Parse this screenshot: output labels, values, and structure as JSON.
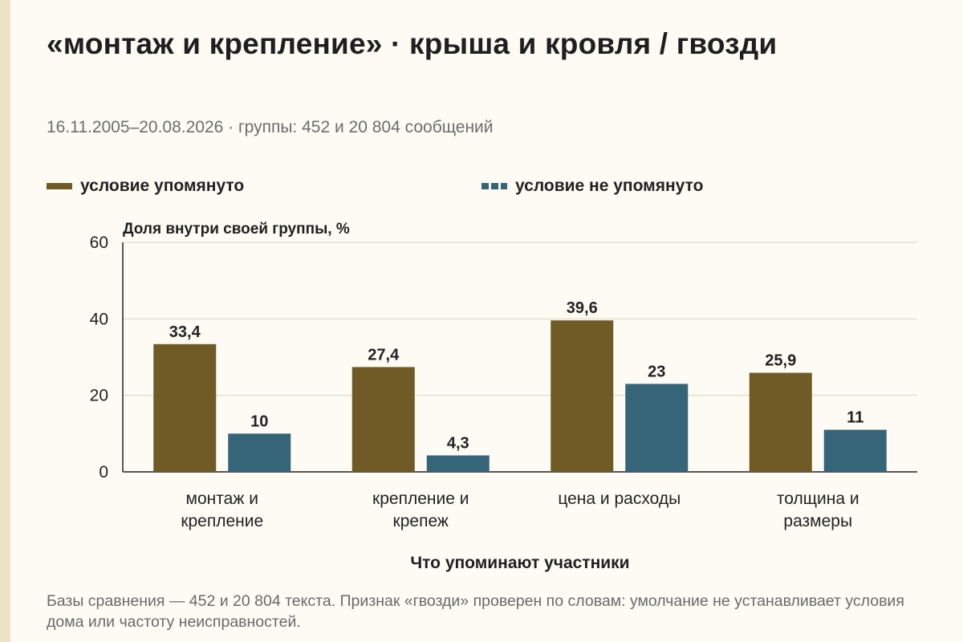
{
  "title": "«монтаж и крепление» · крыша и кровля / гвозди",
  "subtitle": "16.11.2005–20.08.2026 · группы: 452 и 20 804 сообщений",
  "footnote": "Базы сравнения — 452 и 20 804 текста. Признак «гвозди» проверен по словам: умолчание не устанавливает условия дома или частоту неисправностей.",
  "colors": {
    "mentioned": "#705b27",
    "not_mentioned": "#36657a"
  },
  "chart_data": {
    "type": "bar",
    "ylabel": "Доля внутри своей группы, %",
    "xlabel": "Что упоминают участники",
    "ylim": [
      0,
      60
    ],
    "yticks": [
      0,
      20,
      40,
      60
    ],
    "grid": true,
    "legend_placement": "top",
    "categories": [
      [
        "монтаж и",
        "крепление"
      ],
      [
        "крепление и",
        "крепеж"
      ],
      [
        "цена и расходы"
      ],
      [
        "толщина и",
        "размеры"
      ]
    ],
    "series": [
      {
        "name": "условие упомянуто",
        "values": [
          33.4,
          27.4,
          39.6,
          25.9
        ],
        "labels": [
          "33,4",
          "27,4",
          "39,6",
          "25,9"
        ]
      },
      {
        "name": "условие не упомянуто",
        "values": [
          10,
          4.3,
          23,
          11
        ],
        "labels": [
          "10",
          "4,3",
          "23",
          "11"
        ]
      }
    ]
  }
}
